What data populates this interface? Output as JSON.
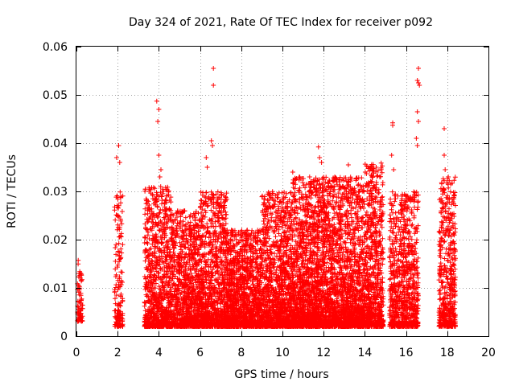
{
  "chart_data": {
    "type": "scatter",
    "title": "Day 324 of 2021, Rate Of TEC Index for receiver p092",
    "xlabel": "GPS time / hours",
    "ylabel": "ROTI / TECUs",
    "xlim": [
      0,
      20
    ],
    "ylim": [
      0,
      0.06
    ],
    "x_ticks": [
      0,
      2,
      4,
      6,
      8,
      10,
      12,
      14,
      16,
      18,
      20
    ],
    "y_ticks": [
      0,
      0.01,
      0.02,
      0.03,
      0.04,
      0.05,
      0.06
    ],
    "x_tick_labels": [
      "0",
      "2",
      "4",
      "6",
      "8",
      "10",
      "12",
      "14",
      "16",
      "18",
      "20"
    ],
    "y_tick_labels": [
      "0",
      "0.01",
      "0.02",
      "0.03",
      "0.04",
      "0.05",
      "0.06"
    ],
    "grid": true,
    "marker": "+",
    "color": "#ff0000",
    "series": [
      {
        "name": "ROTI",
        "clusters": [
          {
            "x_range": [
              0.05,
              0.3
            ],
            "y_range": [
              0.003,
              0.016
            ],
            "density": 1.2
          },
          {
            "x_range": [
              1.85,
              2.25
            ],
            "y_range": [
              0.002,
              0.03
            ],
            "density": 1.5
          },
          {
            "x_range": [
              3.3,
              4.6
            ],
            "y_range": [
              0.002,
              0.031
            ],
            "density": 2.6
          },
          {
            "x_range": [
              4.6,
              6.0
            ],
            "y_range": [
              0.002,
              0.026
            ],
            "density": 2.6
          },
          {
            "x_range": [
              6.0,
              7.3
            ],
            "y_range": [
              0.002,
              0.03
            ],
            "density": 2.8
          },
          {
            "x_range": [
              7.3,
              9.0
            ],
            "y_range": [
              0.002,
              0.022
            ],
            "density": 2.8
          },
          {
            "x_range": [
              9.0,
              10.5
            ],
            "y_range": [
              0.002,
              0.03
            ],
            "density": 3.0
          },
          {
            "x_range": [
              10.5,
              12.5
            ],
            "y_range": [
              0.002,
              0.033
            ],
            "density": 3.4
          },
          {
            "x_range": [
              12.5,
              14.0
            ],
            "y_range": [
              0.002,
              0.033
            ],
            "density": 3.2
          },
          {
            "x_range": [
              14.0,
              14.9
            ],
            "y_range": [
              0.002,
              0.036
            ],
            "density": 3.0
          },
          {
            "x_range": [
              15.2,
              16.1
            ],
            "y_range": [
              0.002,
              0.03
            ],
            "density": 2.4
          },
          {
            "x_range": [
              16.1,
              16.6
            ],
            "y_range": [
              0.002,
              0.03
            ],
            "density": 2.2
          },
          {
            "x_range": [
              17.6,
              18.4
            ],
            "y_range": [
              0.002,
              0.033
            ],
            "density": 2.4
          }
        ],
        "outliers": [
          {
            "x": 2.05,
            "y": 0.0395
          },
          {
            "x": 1.95,
            "y": 0.037
          },
          {
            "x": 2.1,
            "y": 0.036
          },
          {
            "x": 3.9,
            "y": 0.0487
          },
          {
            "x": 4.0,
            "y": 0.047
          },
          {
            "x": 3.95,
            "y": 0.0445
          },
          {
            "x": 4.0,
            "y": 0.0375
          },
          {
            "x": 4.1,
            "y": 0.0345
          },
          {
            "x": 4.05,
            "y": 0.033
          },
          {
            "x": 6.65,
            "y": 0.0555
          },
          {
            "x": 6.65,
            "y": 0.052
          },
          {
            "x": 6.55,
            "y": 0.0405
          },
          {
            "x": 6.6,
            "y": 0.0395
          },
          {
            "x": 6.3,
            "y": 0.037
          },
          {
            "x": 6.35,
            "y": 0.035
          },
          {
            "x": 11.75,
            "y": 0.0392
          },
          {
            "x": 11.8,
            "y": 0.037
          },
          {
            "x": 11.9,
            "y": 0.036
          },
          {
            "x": 10.5,
            "y": 0.034
          },
          {
            "x": 13.2,
            "y": 0.0355
          },
          {
            "x": 14.55,
            "y": 0.035
          },
          {
            "x": 15.35,
            "y": 0.0442
          },
          {
            "x": 15.35,
            "y": 0.0437
          },
          {
            "x": 15.3,
            "y": 0.0375
          },
          {
            "x": 15.4,
            "y": 0.0345
          },
          {
            "x": 16.6,
            "y": 0.0555
          },
          {
            "x": 16.55,
            "y": 0.053
          },
          {
            "x": 16.6,
            "y": 0.0525
          },
          {
            "x": 16.65,
            "y": 0.052
          },
          {
            "x": 16.55,
            "y": 0.0465
          },
          {
            "x": 16.6,
            "y": 0.0445
          },
          {
            "x": 16.5,
            "y": 0.041
          },
          {
            "x": 16.55,
            "y": 0.0395
          },
          {
            "x": 17.85,
            "y": 0.043
          },
          {
            "x": 17.85,
            "y": 0.0375
          },
          {
            "x": 17.9,
            "y": 0.0345
          },
          {
            "x": 18.05,
            "y": 0.033
          }
        ]
      }
    ]
  }
}
